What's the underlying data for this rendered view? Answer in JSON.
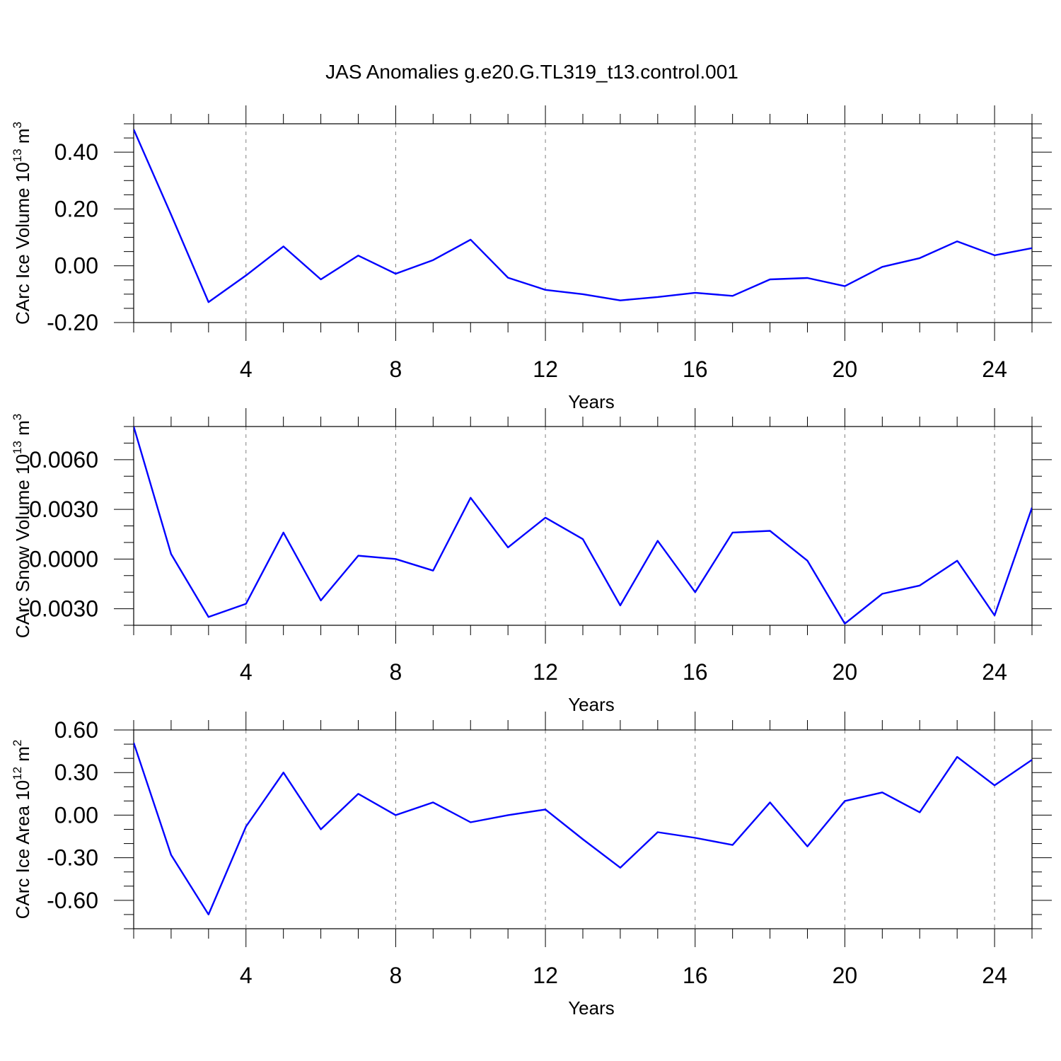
{
  "figure_title": "JAS Anomalies g.e20.G.TL319_t13.control.001",
  "colors": {
    "line": "#0000ff",
    "grid": "#808080",
    "axis": "#000000"
  },
  "chart_data": [
    {
      "type": "line",
      "ylabel_main": "CArc Ice Volume 10",
      "ylabel_exp": "13",
      "ylabel_unit": " m",
      "ylabel_unit_exp": "3",
      "xlabel": "Years",
      "xlim": [
        1,
        25
      ],
      "ylim": [
        -0.2,
        0.5
      ],
      "xticks": [
        4,
        8,
        12,
        16,
        20,
        24
      ],
      "xtick_labels": [
        "4",
        "8",
        "12",
        "16",
        "20",
        "24"
      ],
      "yticks": [
        -0.2,
        0.0,
        0.2,
        0.4
      ],
      "ytick_labels": [
        "-0.20",
        "0.00",
        "0.20",
        "0.40"
      ],
      "yminor_step": 0.05,
      "grid_x": [
        4,
        8,
        12,
        16,
        20,
        24
      ],
      "series": [
        {
          "name": "CArc Ice Volume",
          "x": [
            1,
            2,
            3,
            4,
            5,
            6,
            7,
            8,
            9,
            10,
            11,
            12,
            13,
            14,
            15,
            16,
            17,
            18,
            19,
            20,
            21,
            22,
            23,
            24,
            25
          ],
          "values": [
            0.48,
            0.18,
            -0.128,
            -0.034,
            0.068,
            -0.048,
            0.036,
            -0.028,
            0.02,
            0.092,
            -0.042,
            -0.085,
            -0.1,
            -0.122,
            -0.11,
            -0.095,
            -0.106,
            -0.048,
            -0.043,
            -0.072,
            -0.004,
            0.027,
            0.086,
            0.037,
            0.062
          ]
        }
      ]
    },
    {
      "type": "line",
      "ylabel_main": "CArc Snow Volume 10",
      "ylabel_exp": "13",
      "ylabel_unit": " m",
      "ylabel_unit_exp": "3",
      "xlabel": "Years",
      "xlim": [
        1,
        25
      ],
      "ylim": [
        -0.004,
        0.008
      ],
      "xticks": [
        4,
        8,
        12,
        16,
        20,
        24
      ],
      "xtick_labels": [
        "4",
        "8",
        "12",
        "16",
        "20",
        "24"
      ],
      "yticks": [
        -0.003,
        0.0,
        0.003,
        0.006
      ],
      "ytick_labels": [
        "-0.0030",
        "0.0000",
        "0.0030",
        "0.0060"
      ],
      "yminor_step": 0.001,
      "grid_x": [
        4,
        8,
        12,
        16,
        20,
        24
      ],
      "series": [
        {
          "name": "CArc Snow Volume",
          "x": [
            1,
            2,
            3,
            4,
            5,
            6,
            7,
            8,
            9,
            10,
            11,
            12,
            13,
            14,
            15,
            16,
            17,
            18,
            19,
            20,
            21,
            22,
            23,
            24,
            25
          ],
          "values": [
            0.008,
            0.0003,
            -0.0035,
            -0.0027,
            0.0016,
            -0.0025,
            0.0002,
            -0.0,
            -0.0007,
            0.0037,
            0.0007,
            0.0025,
            0.0012,
            -0.0028,
            0.0011,
            -0.002,
            0.0016,
            0.0017,
            -0.0001,
            -0.0039,
            -0.0021,
            -0.0016,
            -0.0001,
            -0.0034,
            0.0031
          ]
        }
      ]
    },
    {
      "type": "line",
      "ylabel_main": "CArc Ice Area 10",
      "ylabel_exp": "12",
      "ylabel_unit": " m",
      "ylabel_unit_exp": "2",
      "xlabel": "Years",
      "xlim": [
        1,
        25
      ],
      "ylim": [
        -0.8,
        0.6
      ],
      "xticks": [
        4,
        8,
        12,
        16,
        20,
        24
      ],
      "xtick_labels": [
        "4",
        "8",
        "12",
        "16",
        "20",
        "24"
      ],
      "yticks": [
        -0.6,
        -0.3,
        0.0,
        0.3,
        0.6
      ],
      "ytick_labels": [
        "-0.60",
        "-0.30",
        "0.00",
        "0.30",
        "0.60"
      ],
      "yminor_step": 0.1,
      "grid_x": [
        4,
        8,
        12,
        16,
        20,
        24
      ],
      "series": [
        {
          "name": "CArc Ice Area",
          "x": [
            1,
            2,
            3,
            4,
            5,
            6,
            7,
            8,
            9,
            10,
            11,
            12,
            13,
            14,
            15,
            16,
            17,
            18,
            19,
            20,
            21,
            22,
            23,
            24,
            25
          ],
          "values": [
            0.51,
            -0.28,
            -0.7,
            -0.08,
            0.3,
            -0.1,
            0.15,
            0.0,
            0.09,
            -0.05,
            0.0,
            0.04,
            -0.17,
            -0.37,
            -0.12,
            -0.16,
            -0.21,
            0.09,
            -0.22,
            0.1,
            0.16,
            0.02,
            0.41,
            0.21,
            0.39
          ]
        }
      ]
    }
  ]
}
